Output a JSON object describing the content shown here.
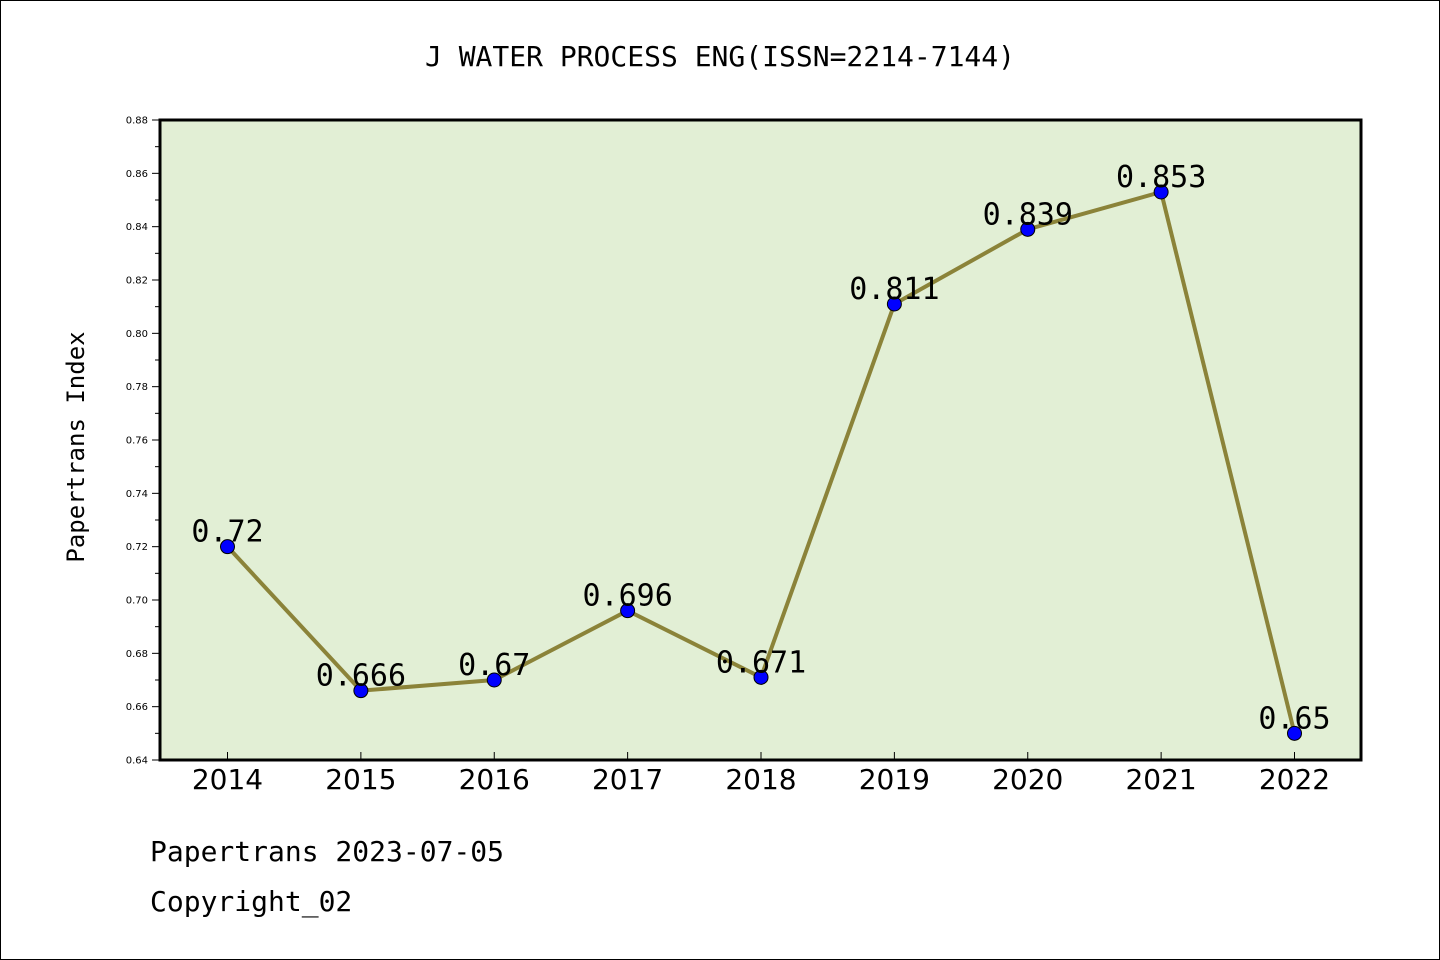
{
  "chart_data": {
    "type": "line",
    "title": "J WATER PROCESS ENG(ISSN=2214-7144)",
    "xlabel": "",
    "ylabel": "Papertrans Index",
    "categories": [
      "2014",
      "2015",
      "2016",
      "2017",
      "2018",
      "2019",
      "2020",
      "2021",
      "2022"
    ],
    "values": [
      0.72,
      0.666,
      0.67,
      0.696,
      0.671,
      0.811,
      0.839,
      0.853,
      0.65
    ],
    "data_labels": [
      "0.72",
      "0.666",
      "0.67",
      "0.696",
      "0.671",
      "0.811",
      "0.839",
      "0.853",
      "0.65"
    ],
    "ylim": [
      0.64,
      0.88
    ],
    "yticks": [
      "0.64",
      "0.66",
      "0.68",
      "0.70",
      "0.72",
      "0.74",
      "0.76",
      "0.78",
      "0.80",
      "0.82",
      "0.84",
      "0.86",
      "0.88"
    ],
    "grid": false,
    "colors": {
      "plot_background": "#e2efd5",
      "line": "#8b8339",
      "marker": "#0000ff"
    }
  },
  "footer": {
    "date_line": "Papertrans 2023-07-05",
    "copyright_line": "Copyright_02"
  }
}
